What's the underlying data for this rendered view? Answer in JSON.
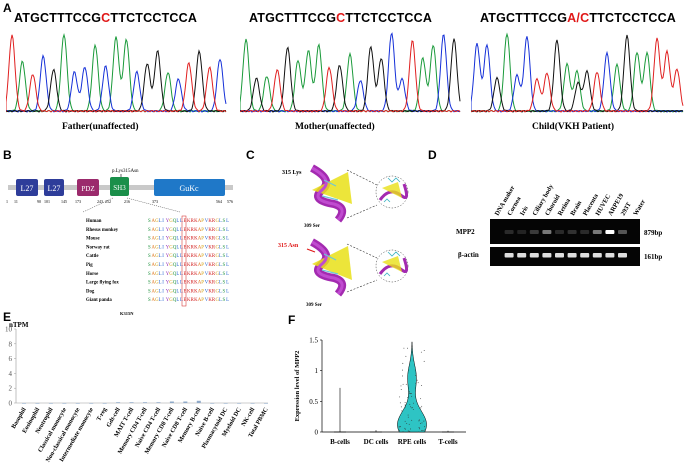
{
  "panels": {
    "A": "A",
    "B": "B",
    "C": "C",
    "D": "D",
    "E": "E",
    "F": "F"
  },
  "panel_a": {
    "chromatograms": [
      {
        "seq_pre": "ATGCTTTCCG",
        "seq_mut": "C",
        "seq_post": "TTCTCCTCCA",
        "caption": "Father(unaffected)"
      },
      {
        "seq_pre": "ATGCTTTCCG",
        "seq_mut": "C",
        "seq_post": "TTCTCCTCCA",
        "caption": "Mother(unaffected)"
      },
      {
        "seq_pre": "ATGCTTTCCG",
        "seq_mut": "A/C",
        "seq_post": "TTCTCCTCCA",
        "caption": "Child(VKH Patient)"
      }
    ]
  },
  "panel_b": {
    "variant_label": "p.Lys315Asn",
    "domains": [
      {
        "name": "L27",
        "color": "#2e3d9a"
      },
      {
        "name": "L27",
        "color": "#2e3d9a"
      },
      {
        "name": "PDZ",
        "color": "#9b2a6c"
      },
      {
        "name": "SH3",
        "color": "#1a8f4a"
      },
      {
        "name": "GuKc",
        "color": "#1f78c8"
      }
    ],
    "positions": [
      "1",
      "11",
      "90",
      "101",
      "145",
      "173",
      "243",
      "252",
      "216",
      "373",
      "564",
      "576"
    ],
    "species": [
      "Human",
      "Rhesus monkey",
      "Mouse",
      "Norway rat",
      "Cattle",
      "Pig",
      "Horse",
      "Large flying fox",
      "Dog",
      "Giant panda"
    ],
    "alignment": "SAGLIYGQLLEKRKAPVKRGLSL",
    "mutation_label": "K315N"
  },
  "panel_c": {
    "top_label": "315 Lys",
    "top_sub": "309 Ser",
    "bottom_label": "315 Asn",
    "bottom_sub": "309 Ser"
  },
  "panel_d": {
    "lanes": [
      "DNA maker",
      "Cornea",
      "Iris",
      "Ciliary body",
      "Choroid",
      "Retina",
      "Brain",
      "Placenta",
      "HUVEC",
      "ARPE19",
      "293T",
      "Water"
    ],
    "rows": [
      {
        "name": "MPP2",
        "size": "879bp",
        "intensity": [
          0,
          0.15,
          0.1,
          0.25,
          0.55,
          0.15,
          0.2,
          0.15,
          0.55,
          1.0,
          0.4,
          0
        ]
      },
      {
        "name": "β-actin",
        "size": "161bp",
        "intensity": [
          0,
          0.9,
          0.9,
          0.9,
          0.9,
          0.9,
          0.9,
          0.9,
          0.9,
          0.9,
          0.9,
          0
        ]
      }
    ]
  },
  "chart_data": [
    {
      "type": "bar",
      "ylabel": "nTPM",
      "ylim": [
        0,
        10
      ],
      "yticks": [
        "0",
        "2",
        "4",
        "6",
        "8",
        "10"
      ],
      "categories": [
        "Basophil",
        "Eosinophil",
        "Neutrophil",
        "Classical monocyte",
        "Non-classical monocyte",
        "Intermediate monocyte",
        "T-reg",
        "Gdt-cell",
        "MAIT T-cell",
        "Memory CD4 T-cell",
        "Naive CD4 T-cell",
        "Memory CD8 T-cell",
        "Naive CD8 T-cell",
        "Memory B-cell",
        "Naive B-cell",
        "Plasmacytoid DC",
        "Myeloid DC",
        "NK-cell",
        "Total PBMC"
      ],
      "values": [
        0,
        0,
        0,
        0,
        0,
        0,
        0,
        0.1,
        0.1,
        0.1,
        0.1,
        0.2,
        0.2,
        0.3,
        0,
        0,
        0,
        0,
        0
      ]
    },
    {
      "type": "violin",
      "ylabel": "Expression level of MPP2",
      "ylim": [
        0,
        1.5
      ],
      "yticks": [
        "0",
        "0.5",
        "1",
        "1.5"
      ],
      "categories": [
        "B-cells",
        "DC cells",
        "RPE cells",
        "T-cells"
      ],
      "max_values": [
        0.72,
        0.03,
        1.47,
        0.02
      ]
    }
  ]
}
